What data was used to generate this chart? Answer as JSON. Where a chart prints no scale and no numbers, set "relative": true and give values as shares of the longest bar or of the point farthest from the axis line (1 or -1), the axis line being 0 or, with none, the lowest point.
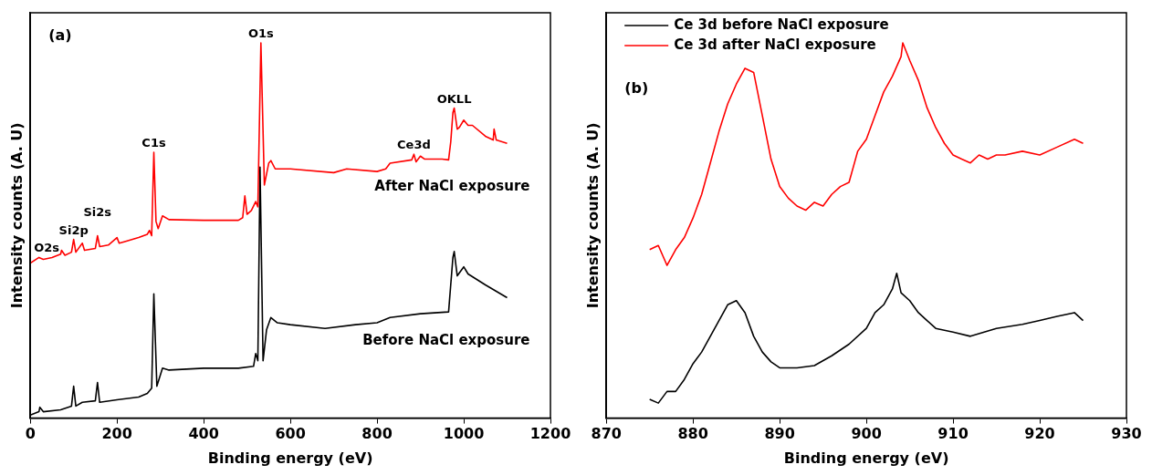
{
  "chart_data": [
    {
      "type": "line",
      "xlabel": "Binding energy (eV)",
      "ylabel": "Intensity counts (A. U)",
      "relative": true,
      "xlim": [
        0,
        1200
      ],
      "xticks": [
        0,
        200,
        400,
        600,
        800,
        1000,
        1200
      ],
      "legend": false,
      "grid": false,
      "marker": "none",
      "annotations": [
        "(a)",
        {
          "text": "O2s",
          "x": 25,
          "y": 0.428
        },
        {
          "text": "Si2p",
          "x": 100,
          "y": 0.476
        },
        {
          "text": "Si2s",
          "x": 155,
          "y": 0.486
        },
        {
          "text": "C1s",
          "x": 285,
          "y": 0.708
        },
        {
          "text": "O1s",
          "x": 532,
          "y": 1.0
        },
        {
          "text": "Ce3d",
          "x": 885,
          "y": 0.703
        },
        {
          "text": "OKLL",
          "x": 978,
          "y": 0.826
        }
      ],
      "series": [
        {
          "name": "After NaCl exposure",
          "color": "#ff0000",
          "x": [
            0,
            20,
            30,
            50,
            70,
            72,
            80,
            95,
            100,
            105,
            120,
            125,
            150,
            155,
            160,
            180,
            200,
            205,
            220,
            250,
            270,
            275,
            280,
            285,
            290,
            295,
            305,
            320,
            400,
            480,
            490,
            495,
            500,
            510,
            520,
            525,
            532,
            540,
            550,
            555,
            565,
            600,
            700,
            730,
            800,
            820,
            830,
            880,
            885,
            890,
            900,
            910,
            950,
            965,
            970,
            975,
            978,
            985,
            990,
            1000,
            1010,
            1020,
            1050,
            1068,
            1070,
            1075,
            1100
          ],
          "values": [
            0.413,
            0.428,
            0.423,
            0.428,
            0.437,
            0.447,
            0.434,
            0.442,
            0.476,
            0.442,
            0.466,
            0.447,
            0.452,
            0.486,
            0.457,
            0.461,
            0.481,
            0.466,
            0.471,
            0.481,
            0.49,
            0.5,
            0.486,
            0.708,
            0.524,
            0.505,
            0.539,
            0.529,
            0.527,
            0.527,
            0.534,
            0.592,
            0.543,
            0.553,
            0.577,
            0.563,
            1.0,
            0.621,
            0.679,
            0.686,
            0.664,
            0.664,
            0.654,
            0.664,
            0.657,
            0.664,
            0.679,
            0.688,
            0.703,
            0.683,
            0.698,
            0.69,
            0.69,
            0.688,
            0.736,
            0.814,
            0.826,
            0.77,
            0.775,
            0.794,
            0.78,
            0.78,
            0.751,
            0.741,
            0.77,
            0.741,
            0.732
          ]
        },
        {
          "name": "Before NaCl exposure",
          "color": "#000000",
          "x": [
            0,
            20,
            22,
            30,
            70,
            95,
            100,
            105,
            120,
            150,
            155,
            160,
            200,
            250,
            270,
            280,
            285,
            292,
            305,
            320,
            400,
            480,
            515,
            520,
            525,
            530,
            537,
            545,
            555,
            570,
            600,
            680,
            750,
            800,
            830,
            900,
            965,
            975,
            978,
            985,
            1000,
            1010,
            1050,
            1100
          ],
          "values": [
            0.008,
            0.017,
            0.029,
            0.017,
            0.022,
            0.032,
            0.085,
            0.032,
            0.042,
            0.046,
            0.095,
            0.042,
            0.049,
            0.056,
            0.066,
            0.08,
            0.331,
            0.085,
            0.133,
            0.128,
            0.133,
            0.133,
            0.138,
            0.172,
            0.153,
            0.669,
            0.153,
            0.235,
            0.268,
            0.254,
            0.249,
            0.239,
            0.249,
            0.254,
            0.268,
            0.278,
            0.283,
            0.428,
            0.444,
            0.379,
            0.403,
            0.384,
            0.355,
            0.321
          ]
        }
      ]
    },
    {
      "type": "line",
      "xlabel": "Binding energy (eV)",
      "ylabel": "Intensity counts (A. U)",
      "relative": true,
      "xlim": [
        870,
        930
      ],
      "xticks": [
        870,
        880,
        890,
        900,
        910,
        920,
        930
      ],
      "legend": "top left",
      "grid": false,
      "marker": "none",
      "annotations": [
        "(b)"
      ],
      "series": [
        {
          "name": "Ce 3d before NaCl exposure",
          "color": "#000000",
          "x": [
            875,
            876,
            877,
            878,
            879,
            880,
            881,
            882,
            883,
            884,
            885,
            886,
            887,
            888,
            889,
            890,
            892,
            894,
            896,
            898,
            900,
            901,
            902,
            903,
            903.5,
            904,
            905,
            906,
            907,
            908,
            910,
            912,
            915,
            918,
            920,
            922,
            924,
            925
          ],
          "values": [
            0.05,
            0.04,
            0.071,
            0.071,
            0.103,
            0.145,
            0.176,
            0.218,
            0.26,
            0.302,
            0.313,
            0.281,
            0.218,
            0.176,
            0.15,
            0.134,
            0.134,
            0.14,
            0.166,
            0.197,
            0.239,
            0.281,
            0.302,
            0.344,
            0.386,
            0.334,
            0.313,
            0.281,
            0.26,
            0.239,
            0.229,
            0.218,
            0.239,
            0.25,
            0.26,
            0.271,
            0.281,
            0.26
          ]
        },
        {
          "name": "Ce 3d after NaCl exposure",
          "color": "#ff0000",
          "x": [
            875,
            876,
            877,
            878,
            879,
            880,
            881,
            882,
            883,
            884,
            885,
            886,
            887,
            888,
            889,
            890,
            891,
            892,
            893,
            894,
            895,
            896,
            897,
            898,
            899,
            900,
            901,
            902,
            903,
            904,
            904.2,
            905,
            906,
            907,
            908,
            909,
            910,
            911,
            912,
            913,
            914,
            915,
            916,
            918,
            920,
            922,
            924,
            925
          ],
          "values": [
            0.449,
            0.46,
            0.407,
            0.449,
            0.481,
            0.533,
            0.596,
            0.68,
            0.764,
            0.837,
            0.89,
            0.932,
            0.921,
            0.806,
            0.69,
            0.617,
            0.586,
            0.565,
            0.554,
            0.575,
            0.565,
            0.596,
            0.617,
            0.628,
            0.711,
            0.743,
            0.806,
            0.869,
            0.911,
            0.963,
            1.0,
            0.953,
            0.9,
            0.827,
            0.774,
            0.732,
            0.701,
            0.69,
            0.68,
            0.701,
            0.69,
            0.701,
            0.701,
            0.711,
            0.701,
            0.722,
            0.743,
            0.732
          ]
        }
      ]
    }
  ]
}
